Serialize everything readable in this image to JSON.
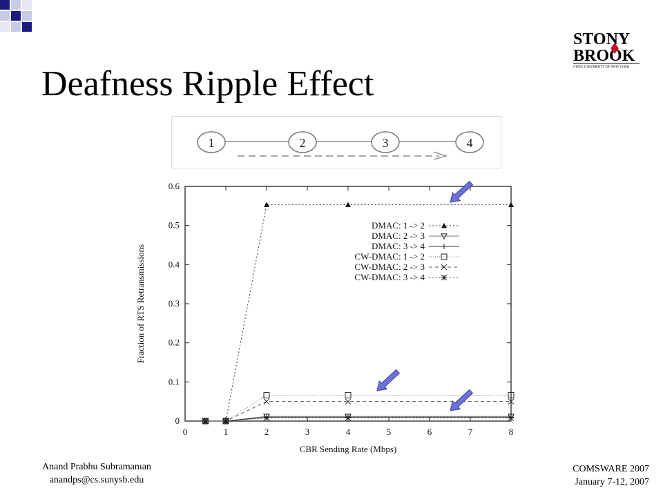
{
  "slide": {
    "title": "Deafness Ripple Effect",
    "footer_left": {
      "author": "Anand Prabhu Subramanıan",
      "email": "anandps@cs.sunysb.edu"
    },
    "footer_right": {
      "event": "COMSWARE 2007",
      "date": "January 7-12, 2007"
    },
    "logo": {
      "line1": "STONY",
      "line2": "BROOK",
      "tagline": "STATE UNIVERSITY OF NEW YORK",
      "accent_color": "#c8102e"
    }
  },
  "topology": {
    "nodes": [
      "1",
      "2",
      "3",
      "4"
    ]
  },
  "chart_data": {
    "type": "line",
    "xlabel": "CBR Sending Rate (Mbps)",
    "ylabel": "Fraction of RTS Retransmissions",
    "xlim": [
      0,
      8
    ],
    "ylim": [
      0,
      0.6
    ],
    "xticks": [
      "0",
      "1",
      "2",
      "3",
      "4",
      "5",
      "6",
      "7",
      "8"
    ],
    "yticks": [
      "0",
      "0.1",
      "0.2",
      "0.3",
      "0.4",
      "0.5",
      "0.6"
    ],
    "x": [
      0.5,
      1,
      2,
      4,
      8
    ],
    "series": [
      {
        "name": "DMAC: 1 -> 2",
        "marker": "triangle-up",
        "values": [
          0,
          0,
          0.553,
          0.553,
          0.553
        ]
      },
      {
        "name": "DMAC: 2 -> 3",
        "marker": "triangle-down",
        "values": [
          0,
          0,
          0.012,
          0.012,
          0.012
        ]
      },
      {
        "name": "DMAC: 3 -> 4",
        "marker": "plus",
        "values": [
          0,
          0,
          0.01,
          0.01,
          0.01
        ]
      },
      {
        "name": "CW-DMAC: 1 -> 2",
        "marker": "square",
        "values": [
          0,
          0,
          0.066,
          0.066,
          0.066
        ]
      },
      {
        "name": "CW-DMAC: 2 -> 3",
        "marker": "x",
        "values": [
          0,
          0,
          0.05,
          0.05,
          0.05
        ]
      },
      {
        "name": "CW-DMAC: 3 -> 4",
        "marker": "star",
        "values": [
          0,
          0,
          0.008,
          0.008,
          0.008
        ]
      }
    ],
    "legend": "top-right",
    "grid": false,
    "annotations": [
      "arrow",
      "arrow",
      "arrow"
    ]
  }
}
